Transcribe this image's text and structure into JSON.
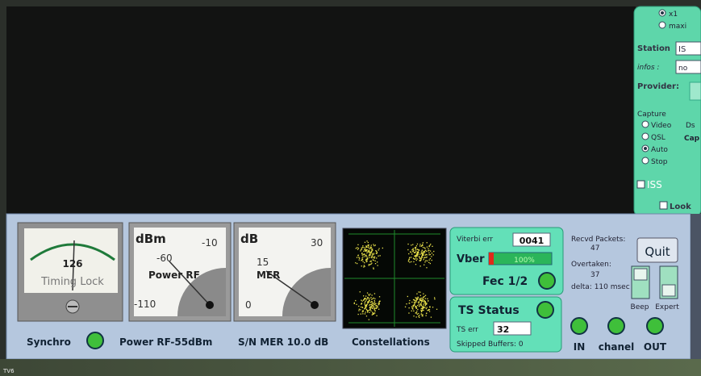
{
  "side_panel": {
    "mode_options": [
      "x1",
      "maxi"
    ],
    "station_label": "Station",
    "station_value": "IS",
    "infos_label": "infos :",
    "infos_value": "no",
    "provider_label": "Provider:",
    "capture_label": "Capture",
    "capture_options": [
      "Video",
      "QSL",
      "Auto",
      "Stop"
    ],
    "side_tabs": [
      "Ds",
      "Cap"
    ],
    "iss_checkbox": "ISS",
    "look_checkbox": "Look"
  },
  "meters": [
    {
      "value": "126",
      "label": "Timing Lock"
    },
    {
      "unit": "dBm",
      "scale": [
        "-10",
        "-60",
        "-110"
      ],
      "label": "Power RF"
    },
    {
      "unit": "dB",
      "scale": [
        "30",
        "15",
        "0"
      ],
      "label": "MER"
    }
  ],
  "status_labels": {
    "synchro": "Synchro",
    "power": "Power RF-55dBm",
    "mer": "S/N MER 10.0 dB",
    "constellations": "Constellations"
  },
  "viterbi": {
    "err_label": "Viterbi err",
    "err_value": "0041",
    "vber_label": "Vber",
    "vber_value": "100%",
    "fec": "Fec 1/2"
  },
  "ts_status": {
    "title": "TS Status",
    "err_label": "TS err",
    "err_value": "32",
    "skipped": "Skipped Buffers: 0"
  },
  "packets": {
    "recvd_label": "Recvd Packets:",
    "recvd_value": "47",
    "overtaken_label": "Overtaken:",
    "overtaken_value": "37",
    "delta": "delta: 110 msec"
  },
  "buttons": {
    "quit": "Quit",
    "beep": "Beep",
    "expert": "Expert"
  },
  "leds": [
    "IN",
    "chanel",
    "OUT"
  ],
  "footer": "TV6"
}
